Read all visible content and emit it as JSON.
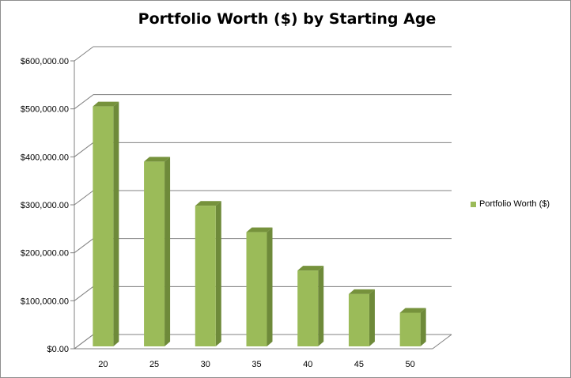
{
  "chart_data": {
    "type": "bar",
    "title": "Portfolio Worth ($) by Starting Age",
    "categories": [
      "20",
      "25",
      "30",
      "35",
      "40",
      "45",
      "50"
    ],
    "series": [
      {
        "name": "Portfolio Worth ($)",
        "values": [
          505000,
          390000,
          298000,
          243000,
          163000,
          114000,
          75000
        ]
      }
    ],
    "y_ticks": [
      "$0.00",
      "$100,000.00",
      "$200,000.00",
      "$300,000.00",
      "$400,000.00",
      "$500,000.00",
      "$600,000.00"
    ],
    "ylim": [
      0,
      600000
    ],
    "grid": true,
    "legend_position": "right",
    "colors": {
      "bar_front": "#9bbb59",
      "bar_side": "#6e8a3a",
      "bar_top": "#76923c",
      "grid": "#808080"
    }
  }
}
